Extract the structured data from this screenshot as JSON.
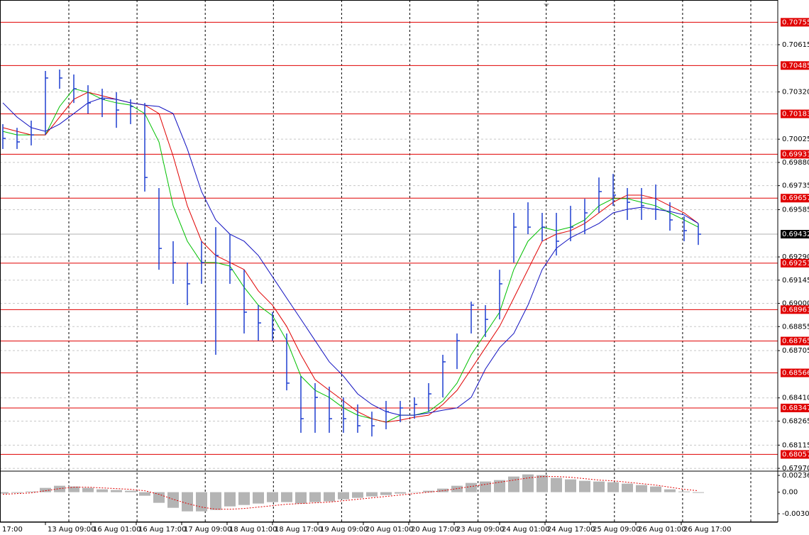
{
  "chart_data": {
    "type": "ohlc",
    "bar_color": "#1f3fd0",
    "ylim": [
      0.67957,
      0.70894
    ],
    "yticks": [
      0.70615,
      {
        "value": 0.7032,
        "label": "0.70320"
      },
      0.70025,
      {
        "value": 0.6988,
        "label": "0.69880"
      },
      0.69735,
      0.69585,
      {
        "value": 0.6929,
        "label": "0.69290"
      },
      0.69145,
      {
        "value": 0.69,
        "label": "0.69000"
      },
      0.68855,
      0.68705,
      {
        "value": 0.6841,
        "label": "0.68410"
      },
      0.68265,
      0.68115,
      {
        "value": 0.6797,
        "label": "0.67970"
      }
    ],
    "grid": true,
    "levels": [
      0.70755,
      0.70485,
      0.70183,
      0.69931,
      0.69657,
      0.69251,
      0.68961,
      0.68765,
      0.68566,
      0.68347,
      0.68057
    ],
    "level_color": "#e00000",
    "last_price": 0.69432,
    "x_labels": [
      "17:00",
      "13 Aug 09:00",
      "16 Aug 01:00",
      "16 Aug 17:00",
      "17 Aug 09:00",
      "18 Aug 01:00",
      "18 Aug 17:00",
      "19 Aug 09:00",
      "20 Aug 01:00",
      "20 Aug 17:00",
      "23 Aug 09:00",
      "24 Aug 01:00",
      "24 Aug 17:00",
      "25 Aug 09:00",
      "26 Aug 01:00",
      "26 Aug 17:00"
    ],
    "high": [
      0.70119,
      0.70096,
      0.70141,
      0.70451,
      0.7046,
      0.70429,
      0.70362,
      0.7034,
      0.70318,
      0.70274,
      0.70251,
      0.6972,
      0.69388,
      0.69255,
      0.69388,
      0.69476,
      0.69432,
      0.6921,
      0.68989,
      0.68945,
      0.68812,
      0.68546,
      0.68502,
      0.6848,
      0.68413,
      0.68369,
      0.68324,
      0.68391,
      0.68391,
      0.68413,
      0.68502,
      0.68679,
      0.68812,
      0.69011,
      0.68989,
      0.6921,
      0.69565,
      0.69631,
      0.69565,
      0.69565,
      0.69609,
      0.69653,
      0.69786,
      0.69808,
      0.6972,
      0.6972,
      0.69742,
      0.69631,
      0.69543,
      0.69498
    ],
    "low": [
      0.69964,
      0.69964,
      0.69986,
      0.70052,
      0.7034,
      0.70251,
      0.70185,
      0.70163,
      0.70096,
      0.70119,
      0.69698,
      0.6921,
      0.69122,
      0.68989,
      0.69122,
      0.68679,
      0.69122,
      0.68812,
      0.68767,
      0.68767,
      0.68457,
      0.68192,
      0.68192,
      0.68192,
      0.68192,
      0.68192,
      0.68169,
      0.68214,
      0.68258,
      0.6828,
      0.68324,
      0.68413,
      0.6859,
      0.68812,
      0.6879,
      0.689,
      0.69255,
      0.69432,
      0.69388,
      0.69299,
      0.69388,
      0.69432,
      0.69565,
      0.69609,
      0.69521,
      0.69521,
      0.69521,
      0.69454,
      0.69388,
      0.69365
    ],
    "close": [
      0.7003,
      0.70008,
      0.70052,
      0.70407,
      0.70407,
      0.7034,
      0.70251,
      0.70274,
      0.70207,
      0.70229,
      0.69786,
      0.69343,
      0.69255,
      0.69122,
      0.69255,
      0.69299,
      0.6921,
      0.68945,
      0.68878,
      0.68834,
      0.68502,
      0.6828,
      0.68413,
      0.6828,
      0.6828,
      0.68236,
      0.68236,
      0.68324,
      0.68347,
      0.68369,
      0.68435,
      0.68635,
      0.68767,
      0.68989,
      0.689,
      0.69122,
      0.69476,
      0.69476,
      0.69476,
      0.69388,
      0.69476,
      0.69565,
      0.69698,
      0.69676,
      0.69631,
      0.69609,
      0.69587,
      0.69521,
      0.69454,
      0.69432
    ],
    "series": [
      {
        "color": "#00c000",
        "values": [
          0.70074,
          0.70052,
          0.70052,
          0.70052,
          0.70229,
          0.7034,
          0.70318,
          0.70274,
          0.70252,
          0.70238,
          0.70185,
          0.70008,
          0.69609,
          0.69388,
          0.69255,
          0.69255,
          0.69233,
          0.691,
          0.68989,
          0.68923,
          0.68768,
          0.68546,
          0.68457,
          0.68413,
          0.68347,
          0.68302,
          0.6828,
          0.68258,
          0.68302,
          0.68302,
          0.68324,
          0.68391,
          0.68502,
          0.68679,
          0.68812,
          0.68945,
          0.69211,
          0.69388,
          0.69476,
          0.69454,
          0.69476,
          0.69521,
          0.69609,
          0.69654,
          0.69654,
          0.69631,
          0.69609,
          0.69565,
          0.69521,
          0.69476
        ]
      },
      {
        "color": "#e00000",
        "values": [
          0.70097,
          0.70074,
          0.70052,
          0.70052,
          0.70163,
          0.70274,
          0.70318,
          0.70296,
          0.70274,
          0.70252,
          0.70238,
          0.70185,
          0.69919,
          0.69609,
          0.69388,
          0.69299,
          0.69255,
          0.69211,
          0.69078,
          0.68989,
          0.68856,
          0.68679,
          0.68524,
          0.68457,
          0.68391,
          0.68324,
          0.6828,
          0.68258,
          0.68271,
          0.68289,
          0.68302,
          0.68369,
          0.68457,
          0.6859,
          0.68723,
          0.68856,
          0.69033,
          0.69211,
          0.69388,
          0.69432,
          0.69454,
          0.69499,
          0.69565,
          0.69631,
          0.69676,
          0.69676,
          0.69654,
          0.69609,
          0.69565,
          0.69499
        ]
      },
      {
        "color": "#1010c0",
        "values": [
          0.70252,
          0.70163,
          0.70097,
          0.70074,
          0.70119,
          0.70185,
          0.70252,
          0.70283,
          0.70274,
          0.70252,
          0.70238,
          0.70229,
          0.70185,
          0.69964,
          0.69698,
          0.69521,
          0.69432,
          0.69388,
          0.69299,
          0.69166,
          0.69033,
          0.68901,
          0.68768,
          0.68635,
          0.68546,
          0.68435,
          0.68369,
          0.68324,
          0.68302,
          0.68302,
          0.68316,
          0.68333,
          0.68347,
          0.68413,
          0.6859,
          0.68723,
          0.68812,
          0.68989,
          0.69211,
          0.69344,
          0.6941,
          0.69454,
          0.69499,
          0.69565,
          0.69587,
          0.696,
          0.69587,
          0.69574,
          0.69552,
          0.69499
        ]
      }
    ],
    "macd": {
      "ylim": [
        -0.00413,
        0.00286
      ],
      "yticks": [
        0.002364,
        {
          "value": 0,
          "label": "0.00"
        },
        -0.00303
      ],
      "histogram_color": "#b4b4b4",
      "histogram": [
        -0.0002,
        -0.0001,
        0.0001,
        0.0006,
        0.0009,
        0.0008,
        0.0006,
        0.0004,
        0.0003,
        0.0002,
        -0.0005,
        -0.0015,
        -0.0022,
        -0.0027,
        -0.0027,
        -0.0025,
        -0.002,
        -0.0018,
        -0.0016,
        -0.0014,
        -0.0014,
        -0.0016,
        -0.0014,
        -0.0013,
        -0.001,
        -0.0008,
        -0.0006,
        -0.0004,
        -0.0002,
        0,
        0.0002,
        0.0005,
        0.0009,
        0.0013,
        0.0015,
        0.0017,
        0.0022,
        0.0025,
        0.0024,
        0.002,
        0.0018,
        0.0016,
        0.0015,
        0.0014,
        0.0012,
        0.001,
        0.0008,
        0.0004,
        0.0001,
        -0.0001
      ],
      "signal_color": "#e00000",
      "signal": [
        -0.0003,
        -0.0002,
        -0.0001,
        0.0002,
        0.0005,
        0.0007,
        0.0007,
        0.0006,
        0.0005,
        0.0004,
        0.0002,
        -0.0003,
        -0.001,
        -0.0016,
        -0.0021,
        -0.0024,
        -0.0024,
        -0.0023,
        -0.0021,
        -0.0019,
        -0.0017,
        -0.0016,
        -0.0015,
        -0.0014,
        -0.0012,
        -0.001,
        -0.0008,
        -0.0006,
        -0.0004,
        -0.0002,
        0,
        0.0002,
        0.0005,
        0.0008,
        0.0011,
        0.0014,
        0.0017,
        0.002,
        0.0022,
        0.0022,
        0.0021,
        0.0019,
        0.0017,
        0.0016,
        0.0014,
        0.0012,
        0.001,
        0.0007,
        0.0004,
        0.0002
      ]
    }
  }
}
